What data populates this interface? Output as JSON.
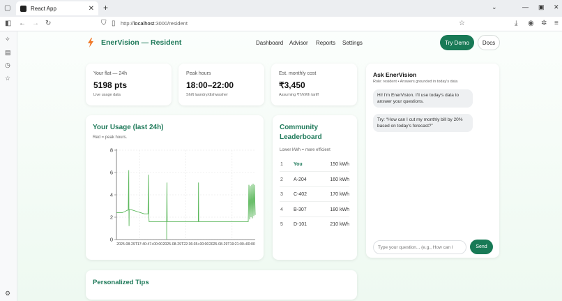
{
  "browser": {
    "tab_title": "React App",
    "tab_close": "✕",
    "new_tab": "+",
    "url_prefix": "http://",
    "url_host": "localhost",
    "url_path": ":3000/resident"
  },
  "header": {
    "brand": "EnerVision — Resident",
    "nav": [
      "Dashboard",
      "Advisor",
      "Reports",
      "Settings"
    ],
    "try_demo": "Try Demo",
    "docs": "Docs"
  },
  "stats": [
    {
      "label": "Your flat — 24h",
      "value": "5198 pts",
      "note": "Live usage data"
    },
    {
      "label": "Peak hours",
      "value": "18:00–22:00",
      "note": "Shift laundry/dishwasher"
    },
    {
      "label": "Est. monthly cost",
      "value": "₹3,450",
      "note": "Assuming ₹7/kWh tariff"
    }
  ],
  "usage": {
    "title": "Your Usage (last 24h)",
    "subtitle": "Red = peak hours."
  },
  "chart_data": {
    "type": "line",
    "title": "Your Usage (last 24h)",
    "ylim": [
      0,
      8
    ],
    "y_ticks": [
      "0",
      "2",
      "4",
      "6",
      "8"
    ],
    "x_ticks": [
      "2025-08-29T17:40:47+00:00",
      "2025-08-29T22:36:35+00:00",
      "2025-08-29T19:21:00+00:00"
    ],
    "grid": true,
    "series": [
      {
        "color": "#5cb85c",
        "x": [
          0,
          0.5,
          1,
          5,
          8,
          12,
          15,
          17,
          17.8,
          18,
          18.2,
          18.4,
          20,
          25,
          30,
          35,
          40,
          45,
          45.5,
          46,
          46.5,
          47,
          50,
          55,
          60,
          65,
          70,
          72,
          72.4,
          72.8,
          73.2,
          76,
          80,
          85,
          89,
          89.3,
          89.6,
          90,
          95,
          100,
          105,
          110,
          115,
          118,
          118.3,
          118.6,
          119,
          125,
          130,
          135,
          140,
          145,
          145.3,
          145.6,
          146,
          150,
          155,
          160,
          165,
          170,
          175,
          180,
          185,
          190,
          191,
          192,
          193,
          194,
          195,
          196,
          197,
          198,
          199,
          200
        ],
        "y": [
          2.4,
          2.4,
          2.4,
          2.4,
          2.4,
          2.5,
          2.6,
          2.65,
          6.2,
          2.6,
          1.2,
          2.7,
          2.7,
          2.6,
          2.5,
          2.4,
          2.3,
          2.3,
          2.3,
          5.8,
          2.3,
          1.6,
          1.6,
          1.6,
          1.6,
          1.6,
          1.6,
          1.6,
          1.6,
          5.1,
          1.6,
          1.6,
          1.6,
          1.6,
          1.6,
          1.6,
          1.6,
          1.6,
          1.6,
          1.6,
          1.6,
          1.6,
          1.6,
          1.6,
          5.1,
          1.6,
          1.6,
          1.6,
          1.6,
          1.6,
          1.6,
          1.6,
          1.6,
          1.6,
          1.6,
          1.6,
          1.6,
          1.6,
          1.6,
          1.6,
          1.6,
          1.6,
          1.6,
          1.6,
          4.9,
          1.8,
          4.8,
          2.0,
          4.9,
          1.9,
          5.0,
          2.1,
          4.9,
          2.2
        ],
        "dip": {
          "x": 72.4,
          "y": 0
        }
      }
    ]
  },
  "leaderboard": {
    "title_line1": "Community",
    "title_line2": "Leaderboard",
    "subtitle": "Lower kWh = more efficient",
    "rows": [
      {
        "rank": "1",
        "name": "You",
        "value": "150 kWh"
      },
      {
        "rank": "2",
        "name": "A-204",
        "value": "160 kWh"
      },
      {
        "rank": "3",
        "name": "C-402",
        "value": "170 kWh"
      },
      {
        "rank": "4",
        "name": "B-307",
        "value": "180 kWh"
      },
      {
        "rank": "5",
        "name": "D-101",
        "value": "210 kWh"
      }
    ]
  },
  "chat": {
    "title": "Ask EnerVision",
    "subtitle": "Role: resident • Answers grounded in today's data",
    "messages": [
      "Hi! I'm EnerVision. I'll use today's data to answer your questions.",
      "Try: “How can I cut my monthly bill by 20% based on today's forecast?”"
    ],
    "placeholder": "Type your question... (e.g., How can I",
    "send": "Send"
  },
  "tips": {
    "title": "Personalized Tips"
  }
}
